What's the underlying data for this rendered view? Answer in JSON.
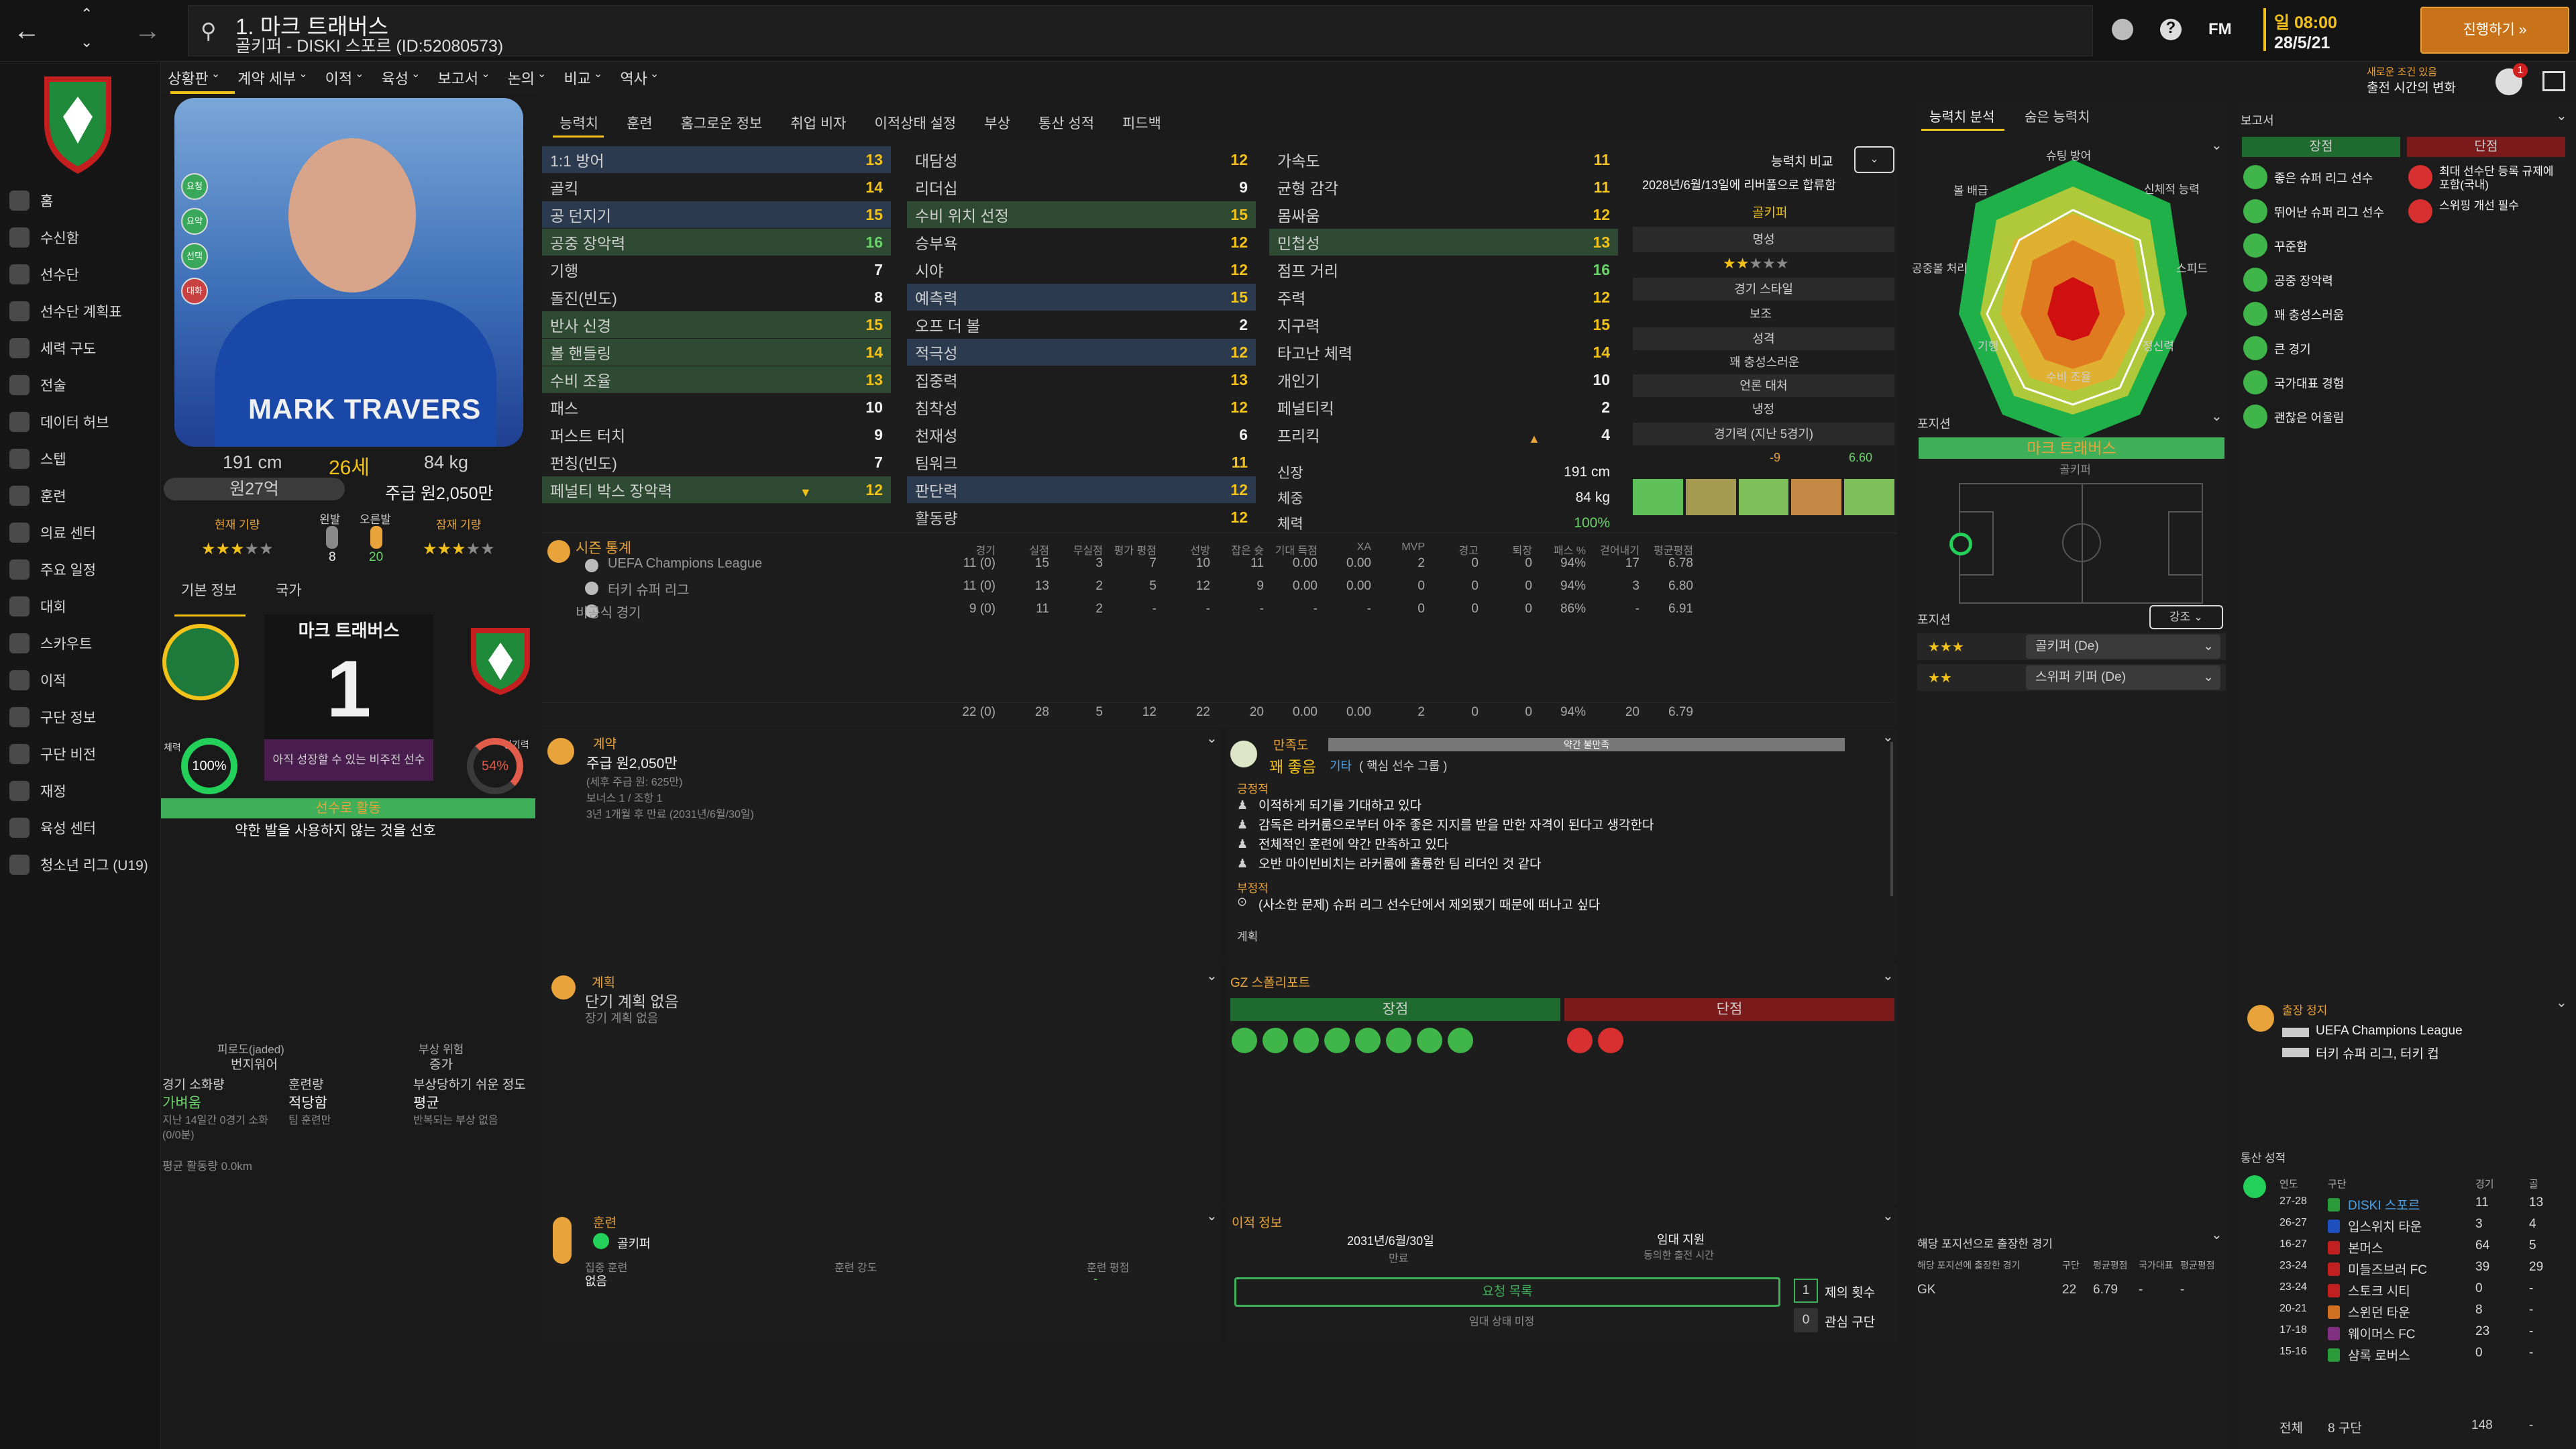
{
  "header": {
    "title": "1. 마크 트래버스",
    "subtitle": "골키퍼 - DISKI 스포르 (ID:52080573)",
    "top_icons": [
      "globe-icon",
      "help-icon",
      "fm-logo"
    ],
    "fm_label": "FM",
    "date_day": "일 08:00",
    "date": "28/5/21",
    "continue_label": "진행하기",
    "notify_small": "새로운 조건 있음",
    "notify_main": "출전 시간의 변화",
    "badge": "1"
  },
  "nav_tabs": [
    "상황판",
    "계약 세부",
    "이적",
    "육성",
    "보고서",
    "논의",
    "비교",
    "역사"
  ],
  "sidebar": {
    "items": [
      "홈",
      "수신함",
      "선수단",
      "선수단 계획표",
      "세력 구도",
      "전술",
      "데이터 허브",
      "스텝",
      "훈련",
      "의료 센터",
      "주요 일정",
      "대회",
      "스카우트",
      "이적",
      "구단 정보",
      "구단 비전",
      "재정",
      "육성 센터",
      "청소년 리그 (U19)"
    ]
  },
  "player": {
    "photo_name": "MARK TRAVERS",
    "height": "191 cm",
    "age": "26세",
    "weight": "84 kg",
    "value": "원27억",
    "wage": "주급 원2,050만",
    "current_ability_label": "현재 기량",
    "foot_left_label": "왼발",
    "foot_right_label": "오른발",
    "foot_left": "8",
    "foot_right": "20",
    "potential_label": "잠재 기량",
    "side_badges": [
      "요청",
      "요약",
      "선택",
      "대화"
    ],
    "info_tabs": [
      "기본 정보",
      "국가"
    ],
    "shirt_name": "마크 트래버스",
    "shirt_number": "1",
    "shirt_status": "아직 성장할 수 있는 비주전 선수",
    "condition_label": "체력",
    "condition": "100%",
    "sharpness_label": "경기력",
    "sharpness": "54%",
    "role_bar": "선수로 활동",
    "trait": "약한 발을 사용하지 않는 것을 선호",
    "fatigue_label": "피로도(jaded)",
    "fatigue_value": "번지워어",
    "injury_label": "부상 위험",
    "injury_value": "증가",
    "cond_cols": [
      {
        "label": "경기 소화량",
        "value": "가벼움",
        "note": "지난 14일간 0경기 소화(0/0분)"
      },
      {
        "label": "훈련량",
        "value": "적당함",
        "note": "팀 훈련만"
      },
      {
        "label": "부상당하기 쉬운 정도",
        "value": "평균",
        "note": "반복되는 부상 없음"
      }
    ],
    "avg_distance": "평균 활동량 0.0km"
  },
  "attr_tabs": [
    "능력치",
    "훈련",
    "홈그로운 정보",
    "취업 비자",
    "이적상태 설정",
    "부상",
    "통산 성적",
    "피드백"
  ],
  "attributes": {
    "col1": [
      [
        "1:1 방어",
        "13"
      ],
      [
        "골킥",
        "14"
      ],
      [
        "공 던지기",
        "15"
      ],
      [
        "공중 장악력",
        "16"
      ],
      [
        "기행",
        "7"
      ],
      [
        "돌진(빈도)",
        "8"
      ],
      [
        "반사 신경",
        "15"
      ],
      [
        "볼 핸들링",
        "14"
      ],
      [
        "수비 조율",
        "13"
      ],
      [
        "패스",
        "10"
      ],
      [
        "퍼스트 터치",
        "9"
      ],
      [
        "펀칭(빈도)",
        "7"
      ],
      [
        "페널티 박스 장악력",
        "12"
      ]
    ],
    "col2": [
      [
        "대담성",
        "12"
      ],
      [
        "리더십",
        "9"
      ],
      [
        "수비 위치 선정",
        "15"
      ],
      [
        "승부욕",
        "12"
      ],
      [
        "시야",
        "12"
      ],
      [
        "예측력",
        "15"
      ],
      [
        "오프 더 볼",
        "2"
      ],
      [
        "적극성",
        "12"
      ],
      [
        "집중력",
        "13"
      ],
      [
        "침착성",
        "12"
      ],
      [
        "천재성",
        "6"
      ],
      [
        "팀워크",
        "11"
      ],
      [
        "판단력",
        "12"
      ],
      [
        "활동량",
        "12"
      ]
    ],
    "col3": [
      [
        "가속도",
        "11"
      ],
      [
        "균형 감각",
        "11"
      ],
      [
        "몸싸움",
        "12"
      ],
      [
        "민첩성",
        "13"
      ],
      [
        "점프 거리",
        "16"
      ],
      [
        "주력",
        "12"
      ],
      [
        "지구력",
        "15"
      ],
      [
        "타고난 체력",
        "14"
      ],
      [
        "개인기",
        "10"
      ],
      [
        "페널티킥",
        "2"
      ],
      [
        "프리킥",
        "4"
      ]
    ],
    "physical": [
      [
        "신장",
        "191 cm"
      ],
      [
        "체중",
        "84 kg"
      ],
      [
        "체력",
        "100%"
      ]
    ]
  },
  "compare": {
    "label": "능력치 비교",
    "date_note": "2028년/6월/13일에 리버풀으로 합류함",
    "position": "골키퍼",
    "reputation_label": "명성",
    "style_label": "경기 스타일",
    "style": "보조",
    "personality_label": "성격",
    "personality": "꽤 충성스러운",
    "media_label": "언론 대처",
    "media": "냉정",
    "form_label": "경기력 (지난 5경기)",
    "form_low": "-9",
    "form_rating": "6.60"
  },
  "season": {
    "title": "시즌 통계",
    "headers": [
      "경기",
      "실점",
      "무실점",
      "평가 평점",
      "선방",
      "잡은 슛",
      "기대 득점",
      "XA",
      "MVP",
      "경고",
      "퇴장",
      "패스 %",
      "걷어내기",
      "평균평점"
    ],
    "rows": [
      {
        "name": "UEFA Champions League",
        "vals": [
          "11 (0)",
          "15",
          "3",
          "7",
          "10",
          "11",
          "0.00",
          "0.00",
          "2",
          "0",
          "0",
          "94%",
          "17",
          "6.78"
        ]
      },
      {
        "name": "터키 슈퍼 리그",
        "vals": [
          "11 (0)",
          "13",
          "2",
          "5",
          "12",
          "9",
          "0.00",
          "0.00",
          "0",
          "0",
          "0",
          "94%",
          "3",
          "6.80"
        ]
      },
      {
        "name": "비공식 경기",
        "vals": [
          "9 (0)",
          "11",
          "2",
          "-",
          "-",
          "-",
          "-",
          "-",
          "0",
          "0",
          "0",
          "86%",
          "-",
          "6.91"
        ]
      }
    ],
    "totals": [
      "22 (0)",
      "28",
      "5",
      "12",
      "22",
      "20",
      "0.00",
      "0.00",
      "2",
      "0",
      "0",
      "94%",
      "20",
      "6.79"
    ]
  },
  "contract": {
    "title": "계약",
    "wage": "주급 원2,050만",
    "after_tax": "(세후 주급 원: 625만)",
    "bonus": "보너스 1 / 조항 1",
    "expiry": "3년 1개월 후 만료 (2031년/6월/30일)"
  },
  "happiness": {
    "title": "만족도",
    "level": "꽤 좋음",
    "bar_label": "약간 불만족",
    "role_prefix": "기타",
    "role": "( 핵심 선수 그룹 )",
    "positive_label": "긍정적",
    "positives": [
      "이적하게 되기를 기대하고 있다",
      "감독은 라커룸으로부터 아주 좋은 지지를 받을 만한 자격이 된다고 생각한다",
      "전체적인 훈련에 약간 만족하고 있다",
      "오반 마이빈비치는 라커룸에 훌륭한 팀 리더인 것 같다"
    ],
    "negative_label": "부정적",
    "negatives": [
      "(사소한 문제) 슈퍼 리그 선수단에서 제외됐기 때문에 떠나고 싶다"
    ],
    "plan_label": "계획"
  },
  "plans": {
    "title": "계획",
    "short": "단기 계획 없음",
    "long": "장기 계획 없음"
  },
  "scout": {
    "title": "GZ 스폴리포트",
    "strengths": "장점",
    "weaknesses": "단점"
  },
  "training": {
    "title": "훈련",
    "role": "골키퍼",
    "focus_label": "집중 훈련",
    "focus": "없음",
    "intensity_label": "훈련 강도",
    "rating_label": "훈련 평점",
    "rating": "-"
  },
  "transfer": {
    "title": "이적 정보",
    "date": "2031년/6월/30일",
    "date_label": "만료",
    "loan": "임대 지원",
    "loan_label": "동의한 출전 시간",
    "request_btn": "요청 목록",
    "unclear": "임대 상태 미정",
    "offers_label": "제의 횟수",
    "offers": "1",
    "interest_label": "관심 구단",
    "interest": "0"
  },
  "analysis": {
    "tabs": [
      "능력치 분석",
      "숨은 능력치"
    ],
    "axes": [
      "슈팅 방어",
      "신체적 능력",
      "스피드",
      "정신력",
      "수비 조율",
      "기행",
      "공중볼 처리",
      "볼 배급"
    ],
    "position_title": "포지션",
    "position_name": "마크 트래버스",
    "position_role": "골키퍼",
    "roles_title": "포지션",
    "focus_btn": "강조",
    "roles": [
      {
        "name": "골키퍼 (De)"
      },
      {
        "name": "스위퍼 키퍼 (De)"
      }
    ],
    "apps_title": "해당 포지션으로 출장한 경기",
    "apps_headers": [
      "해당 포지션에 출장한 경기",
      "구단",
      "평균평점",
      "국가대표",
      "평균평점"
    ],
    "apps_row": [
      "GK",
      "22",
      "6.79",
      "-",
      "-"
    ]
  },
  "report": {
    "title": "보고서",
    "strengths_label": "장점",
    "weaknesses_label": "단점",
    "strengths": [
      "좋은 슈퍼 리그 선수",
      "뛰어난 슈퍼 리그 선수",
      "꾸준함",
      "공중 장악력",
      "꽤 충성스러움",
      "큰 경기",
      "국가대표 경험",
      "괜찮은 어울림"
    ],
    "weaknesses": [
      "최대 선수단 등록 규제에 포함(국내)",
      "스위핑 개선 필수"
    ],
    "suspension_title": "출장 정지",
    "suspensions": [
      "UEFA Champions League",
      "터키 슈퍼 리그, 터키 컵"
    ]
  },
  "career": {
    "title": "통산 성적",
    "headers": [
      "연도",
      "구단",
      "경기",
      "골"
    ],
    "rows": [
      [
        "27-28",
        "DISKI 스포르",
        "11",
        "13"
      ],
      [
        "26-27",
        "입스위치 타운",
        "3",
        "4"
      ],
      [
        "16-27",
        "본머스",
        "64",
        "5"
      ],
      [
        "23-24",
        "미들즈브러 FC",
        "39",
        "29"
      ],
      [
        "23-24",
        "스토크 시티",
        "0",
        "-"
      ],
      [
        "20-21",
        "스윈던 타운",
        "8",
        "-"
      ],
      [
        "17-18",
        "웨이머스 FC",
        "23",
        "-"
      ],
      [
        "15-16",
        "샴록 로버스",
        "0",
        "-"
      ]
    ],
    "total_label": "전체",
    "total_clubs": "8 구단",
    "total_apps": "148",
    "total_goals": "-"
  },
  "colors": {
    "accent": "#f2c21b",
    "green": "#2c8a3c",
    "red": "#8a2020",
    "hl_blue": "#2b3a4f"
  }
}
